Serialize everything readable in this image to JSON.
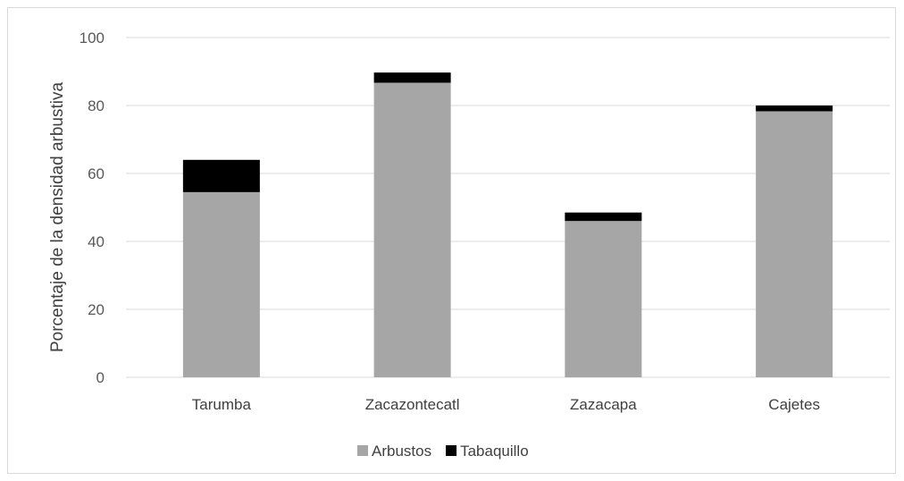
{
  "chart_data": {
    "type": "bar",
    "stacked": true,
    "title": "",
    "xlabel": "",
    "ylabel": "Porcentaje de la densidad arbustiva",
    "ylim": [
      0,
      100
    ],
    "yticks": [
      0,
      20,
      40,
      60,
      80,
      100
    ],
    "grid": true,
    "legend_position": "bottom",
    "categories": [
      "Tarumba",
      "Zacazontecatl",
      "Zazacapa",
      "Cajetes"
    ],
    "series": [
      {
        "name": "Arbustos",
        "color": "#a6a6a6",
        "values": [
          54.5,
          86.7,
          46.0,
          78.3
        ]
      },
      {
        "name": "Tabaquillo",
        "color": "#000000",
        "values": [
          9.5,
          3.0,
          2.5,
          1.7
        ]
      }
    ]
  }
}
